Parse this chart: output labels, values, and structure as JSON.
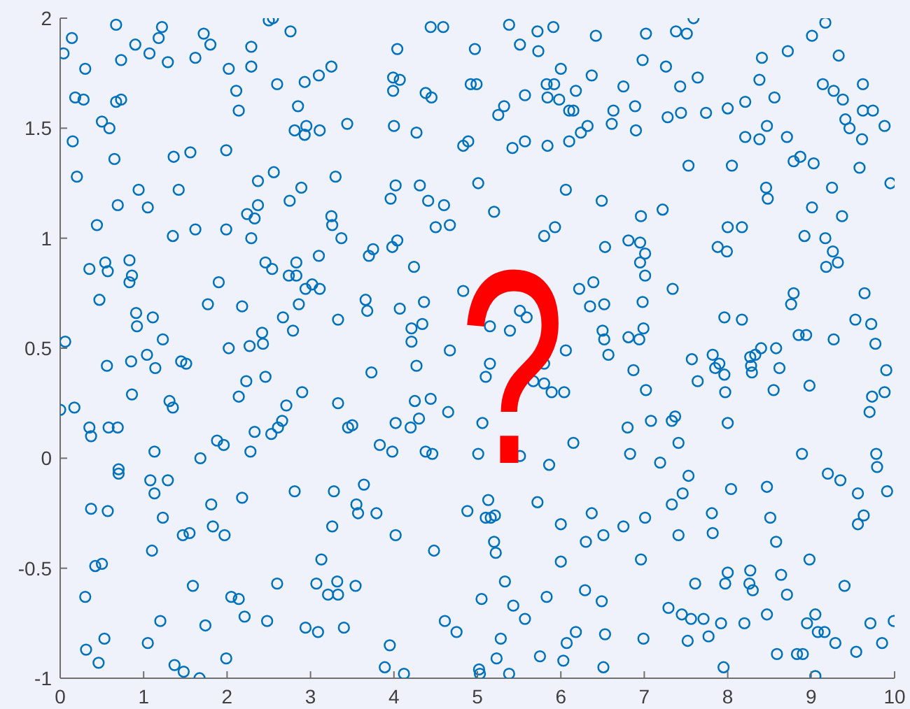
{
  "chart_data": {
    "type": "scatter",
    "color": "#0072bd",
    "marker": "circle",
    "xlim": [
      0,
      10
    ],
    "xticks": [
      0,
      1,
      2,
      3,
      4,
      5,
      6,
      7,
      8,
      9,
      10
    ],
    "ylim": [
      -1,
      2
    ],
    "yticks": [
      -1,
      -0.5,
      0,
      0.5,
      1,
      1.5,
      2
    ],
    "annotations": [
      "?"
    ],
    "x": [
      0.04,
      0.14,
      0.67,
      0.9,
      0.73,
      0.3,
      1.07,
      1.18,
      1.22,
      1.29,
      1.62,
      1.72,
      1.8,
      2.02,
      2.11,
      2.14,
      2.29,
      2.29,
      2.5,
      2.55,
      2.76,
      2.6,
      0.18,
      0.28,
      0.67,
      0.73,
      0.5,
      0.59,
      0.15,
      0.65,
      1.36,
      1.56,
      1.99,
      0.2,
      0.94,
      1.42,
      0.69,
      1.05,
      2.37,
      2.56,
      2.75,
      2.89,
      2.24,
      2.37,
      2.33,
      0.44,
      1.35,
      1.62,
      1.99,
      2.29,
      0.35,
      0.54,
      0.57,
      0.83,
      0.86,
      0.83,
      0.47,
      0.91,
      1.11,
      0.92,
      1.9,
      1.77,
      2.18,
      2.46,
      2.54,
      2.83,
      2.74,
      2.83,
      2.86,
      2.67,
      2.79,
      2.42,
      1.23,
      2.02,
      2.27,
      2.43,
      0.06,
      2.85,
      2.81,
      2.95,
      2.93,
      4.44,
      4.59,
      5.38,
      5.72,
      5.91,
      5.51,
      5.73,
      6.42,
      4.04,
      4.97,
      3.25,
      3.1,
      2.93,
      3.99,
      4.07,
      3.99,
      4.38,
      4.45,
      4.92,
      4.99,
      6,
      6.37,
      5.83,
      5.92,
      5.84,
      5.98,
      6.18,
      6.1,
      6.15,
      6.32,
      6.24,
      6.1,
      5.57,
      5.32,
      5.25,
      3.11,
      3.44,
      4,
      4.27,
      4.83,
      4.89,
      5.42,
      5.57,
      5.84,
      3.3,
      4.02,
      3.96,
      4.31,
      4.41,
      4.6,
      5.01,
      5.2,
      6.06,
      6.49,
      4.5,
      4.67,
      3.25,
      3.26,
      3.37,
      3.1,
      3.7,
      3.75,
      3.98,
      4.04,
      4.24,
      5.8,
      5.93,
      6.53,
      3.02,
      3.11,
      2.94,
      3.66,
      3.68,
      4.07,
      4.36,
      3.33,
      4.21,
      4.34,
      4.21,
      4.67,
      4.83,
      5.15,
      5.39,
      5.51,
      5.59,
      6.22,
      6.39,
      6.35,
      6.52,
      6.5,
      6.52,
      6.06,
      7.02,
      7.38,
      7.51,
      7.59,
      6.98,
      7.26,
      7.43,
      7.64,
      6.75,
      6.63,
      6.61,
      6.89,
      6.9,
      7.28,
      7.44,
      7.74,
      8,
      8.21,
      8.41,
      8.38,
      8.56,
      8.72,
      9.01,
      9.17,
      9.33,
      9.14,
      9.27,
      9.38,
      9.62,
      9.62,
      9.74,
      9.88,
      9.41,
      9.46,
      9.61,
      8.21,
      8.38,
      8.47,
      8.71,
      8.79,
      8.87,
      9.03,
      7.53,
      8.05,
      9.58,
      9.95,
      9.25,
      8.46,
      8.48,
      9.01,
      9.37,
      6.96,
      7.22,
      8,
      8.17,
      7.88,
      7.99,
      8.92,
      9.17,
      9.26,
      9.32,
      9.18,
      6.81,
      6.95,
      7.01,
      6.95,
      7.01,
      7.34,
      6.98,
      8.79,
      8.76,
      9.64,
      7.96,
      8.17,
      9.53,
      9.72,
      9.77,
      9.27,
      8.85,
      8.94,
      8.58,
      8.4,
      8.33,
      8.27,
      7.82,
      7.57,
      6.99,
      6.81,
      6.94,
      6.57,
      0.56,
      0.85,
      1.04,
      1.14,
      1.45,
      1.51,
      0.86,
      1.31,
      1.35,
      0,
      0.17,
      0.35,
      0.37,
      0.58,
      0.69,
      1.13,
      1.68,
      1.88,
      1.96,
      2.14,
      2.23,
      2.46,
      2.28,
      2.33,
      2.53,
      2.61,
      2.66,
      2.71,
      2.9,
      0.7,
      0.7,
      1.08,
      1.29,
      1.13,
      0.37,
      0.57,
      1.23,
      1.81,
      2.18,
      2.81,
      1.83,
      1.97,
      1.47,
      1.55,
      1.1,
      0.42,
      0.5,
      0.3,
      1.59,
      2.05,
      2.14,
      2.6,
      1.2,
      1.74,
      2.21,
      2.48,
      2.94,
      0.53,
      0.31,
      0.46,
      1.05,
      1.99,
      1.37,
      1.48,
      1.67,
      3.73,
      4.27,
      3.33,
      3.45,
      3.5,
      3.83,
      3.98,
      4.02,
      4.2,
      4.3,
      4.25,
      4.44,
      4.65,
      4.38,
      4.46,
      5.06,
      5.01,
      5.15,
      5.1,
      5.67,
      5.8,
      5.89,
      6.04,
      5.8,
      5.51,
      6.15,
      5.86,
      3.28,
      3.64,
      3.55,
      3.57,
      3.79,
      3.26,
      4.02,
      4.48,
      4.88,
      5.13,
      5.1,
      5.16,
      5.21,
      5.72,
      6,
      6.37,
      6.51,
      6.3,
      5.2,
      5.22,
      6,
      3.13,
      3.07,
      3.32,
      3.21,
      3.33,
      3.54,
      5.33,
      5.05,
      5.43,
      5.57,
      5.83,
      6.29,
      6.49,
      3.09,
      3.4,
      4.61,
      4.75,
      3.95,
      3.89,
      4.12,
      5.28,
      5.23,
      5.02,
      5.03,
      5.38,
      5.75,
      6.07,
      6.18,
      6.03,
      6.53,
      6.51,
      6.87,
      7.85,
      7.9,
      7.96,
      8.28,
      8.29,
      8.62,
      9.9,
      7.02,
      7.64,
      7.97,
      8.55,
      8.98,
      9.73,
      9.88,
      9.7,
      6.8,
      7.08,
      7.33,
      7.37,
      7.41,
      8,
      6.83,
      7.19,
      7.53,
      7.46,
      7.33,
      8.04,
      8.47,
      8.89,
      9.2,
      9.35,
      9.56,
      9.78,
      9.79,
      9.91,
      6.75,
      7.01,
      7.41,
      7.81,
      7.82,
      8.51,
      8.58,
      9.63,
      9.56,
      6.96,
      8.98,
      7.61,
      8,
      7.97,
      8.27,
      8.26,
      8.3,
      8.64,
      8.71,
      9.4,
      7.29,
      7.45,
      7.56,
      7.71,
      7.92,
      7.77,
      8.2,
      8.47,
      8.95,
      9.05,
      9.08,
      9.16,
      9.29,
      9.71,
      9.99,
      9.85,
      6.99,
      7.52,
      9.54,
      8.59,
      8.83,
      8.9,
      7.95,
      9.05
    ],
    "values": [
      1.84,
      1.91,
      1.97,
      1.88,
      1.81,
      1.77,
      1.84,
      1.91,
      1.96,
      1.8,
      1.82,
      1.93,
      1.88,
      1.77,
      1.67,
      1.58,
      1.87,
      1.78,
      1.99,
      2,
      1.94,
      1.7,
      1.64,
      1.63,
      1.62,
      1.63,
      1.53,
      1.5,
      1.44,
      1.36,
      1.37,
      1.39,
      1.4,
      1.28,
      1.22,
      1.22,
      1.15,
      1.14,
      1.26,
      1.3,
      1.17,
      1.23,
      1.11,
      1.15,
      1.09,
      1.06,
      1.01,
      1.04,
      1.04,
      1,
      0.86,
      0.89,
      0.85,
      0.9,
      0.83,
      0.8,
      0.72,
      0.66,
      0.64,
      0.6,
      0.8,
      0.7,
      0.69,
      0.89,
      0.86,
      0.89,
      0.83,
      0.83,
      0.7,
      0.64,
      0.58,
      0.57,
      0.54,
      0.5,
      0.51,
      0.52,
      0.53,
      1.6,
      1.49,
      1.51,
      1.47,
      1.96,
      1.96,
      1.97,
      1.94,
      1.96,
      1.88,
      1.85,
      1.92,
      1.86,
      1.86,
      1.78,
      1.74,
      1.71,
      1.73,
      1.72,
      1.67,
      1.66,
      1.64,
      1.7,
      1.7,
      1.77,
      1.74,
      1.7,
      1.7,
      1.64,
      1.63,
      1.67,
      1.58,
      1.58,
      1.51,
      1.48,
      1.44,
      1.65,
      1.6,
      1.56,
      1.49,
      1.52,
      1.51,
      1.48,
      1.42,
      1.44,
      1.41,
      1.44,
      1.42,
      1.28,
      1.24,
      1.18,
      1.24,
      1.17,
      1.15,
      1.25,
      1.12,
      1.22,
      1.17,
      1.05,
      1.06,
      1.1,
      1.06,
      1,
      0.92,
      0.92,
      0.95,
      0.96,
      0.99,
      0.87,
      1.01,
      1.05,
      0.96,
      0.79,
      0.77,
      0.77,
      0.72,
      0.67,
      0.68,
      0.71,
      0.63,
      0.59,
      0.61,
      0.53,
      0.49,
      0.76,
      0.6,
      0.58,
      0.67,
      0.64,
      0.77,
      0.8,
      0.69,
      0.7,
      0.58,
      0.54,
      0.49,
      1.93,
      1.94,
      1.93,
      2,
      1.81,
      1.78,
      1.69,
      1.73,
      1.69,
      1.58,
      1.52,
      1.6,
      1.49,
      1.55,
      1.57,
      1.57,
      1.59,
      1.62,
      1.82,
      1.72,
      1.64,
      1.85,
      1.92,
      1.98,
      1.83,
      1.7,
      1.67,
      1.63,
      1.7,
      1.58,
      1.58,
      1.51,
      1.54,
      1.5,
      1.45,
      1.46,
      1.45,
      1.51,
      1.46,
      1.35,
      1.37,
      1.34,
      1.33,
      1.33,
      1.32,
      1.25,
      1.23,
      1.23,
      1.18,
      1.14,
      1.1,
      1.1,
      1.13,
      1.05,
      1.05,
      0.96,
      0.94,
      1.01,
      1,
      0.94,
      0.89,
      0.87,
      0.99,
      0.98,
      0.93,
      0.89,
      0.83,
      0.77,
      0.71,
      0.75,
      0.7,
      0.75,
      0.64,
      0.63,
      0.63,
      0.61,
      0.52,
      0.54,
      0.56,
      0.56,
      0.5,
      0.5,
      0.47,
      0.46,
      0.47,
      0.45,
      0.59,
      0.55,
      0.54,
      0.47,
      0.42,
      0.44,
      0.47,
      0.41,
      0.44,
      0.43,
      0.29,
      0.26,
      0.23,
      0.22,
      0.23,
      0.14,
      0.1,
      0.14,
      0.14,
      0.03,
      0,
      0.08,
      0.06,
      0.28,
      0.35,
      0.37,
      0.03,
      0.12,
      0.11,
      0.14,
      0.17,
      0.24,
      0.3,
      -0.05,
      -0.07,
      -0.1,
      -0.1,
      -0.16,
      -0.23,
      -0.24,
      -0.27,
      -0.21,
      -0.18,
      -0.15,
      -0.31,
      -0.35,
      -0.35,
      -0.34,
      -0.42,
      -0.49,
      -0.48,
      -0.63,
      -0.58,
      -0.63,
      -0.64,
      -0.57,
      -0.74,
      -0.76,
      -0.72,
      -0.74,
      -0.77,
      -0.82,
      -0.87,
      -0.93,
      -0.84,
      -0.91,
      -0.94,
      -0.97,
      -1,
      0.39,
      0.42,
      0.25,
      0.14,
      0.15,
      0.06,
      0.03,
      0.16,
      0.14,
      0.18,
      0.26,
      0.27,
      0.21,
      0.03,
      0.02,
      0.16,
      0.02,
      0.43,
      0.37,
      0.35,
      0.34,
      0.3,
      0.3,
      0.43,
      0.01,
      0.07,
      -0.03,
      -0.15,
      -0.12,
      -0.21,
      -0.25,
      -0.25,
      -0.31,
      -0.35,
      -0.42,
      -0.24,
      -0.19,
      -0.27,
      -0.27,
      -0.26,
      -0.2,
      -0.3,
      -0.25,
      -0.35,
      -0.38,
      -0.38,
      -0.43,
      -0.47,
      -0.46,
      -0.57,
      -0.56,
      -0.62,
      -0.62,
      -0.58,
      -0.56,
      -0.64,
      -0.67,
      -0.73,
      -0.63,
      -0.6,
      -0.65,
      -0.79,
      -0.77,
      -0.74,
      -0.79,
      -0.85,
      -0.95,
      -0.98,
      -0.82,
      -0.91,
      -0.96,
      -0.98,
      -0.98,
      -0.9,
      -0.84,
      -0.79,
      -0.92,
      -0.8,
      -0.95,
      0.4,
      0.41,
      0.43,
      0.38,
      0.42,
      0.39,
      0.41,
      0.4,
      0.31,
      0.35,
      0.3,
      0.31,
      0.33,
      0.28,
      0.3,
      0.21,
      0.14,
      0.17,
      0.17,
      0.19,
      0.07,
      0.16,
      0.02,
      -0.02,
      -0.08,
      -0.16,
      -0.21,
      -0.14,
      -0.13,
      0.02,
      -0.07,
      -0.1,
      -0.16,
      0.02,
      -0.04,
      -0.15,
      -0.31,
      -0.27,
      -0.35,
      -0.25,
      -0.34,
      -0.27,
      -0.38,
      -0.26,
      -0.3,
      -0.46,
      -0.46,
      -0.57,
      -0.52,
      -0.57,
      -0.51,
      -0.57,
      -0.6,
      -0.53,
      -0.62,
      -0.58,
      -0.68,
      -0.71,
      -0.73,
      -0.73,
      -0.75,
      -0.81,
      -0.75,
      -0.71,
      -0.75,
      -0.71,
      -0.79,
      -0.79,
      -0.84,
      -0.75,
      -0.74,
      -0.84,
      -0.82,
      -0.83,
      -0.88,
      -0.89,
      -0.89,
      -0.89,
      -0.95,
      -0.99
    ]
  }
}
